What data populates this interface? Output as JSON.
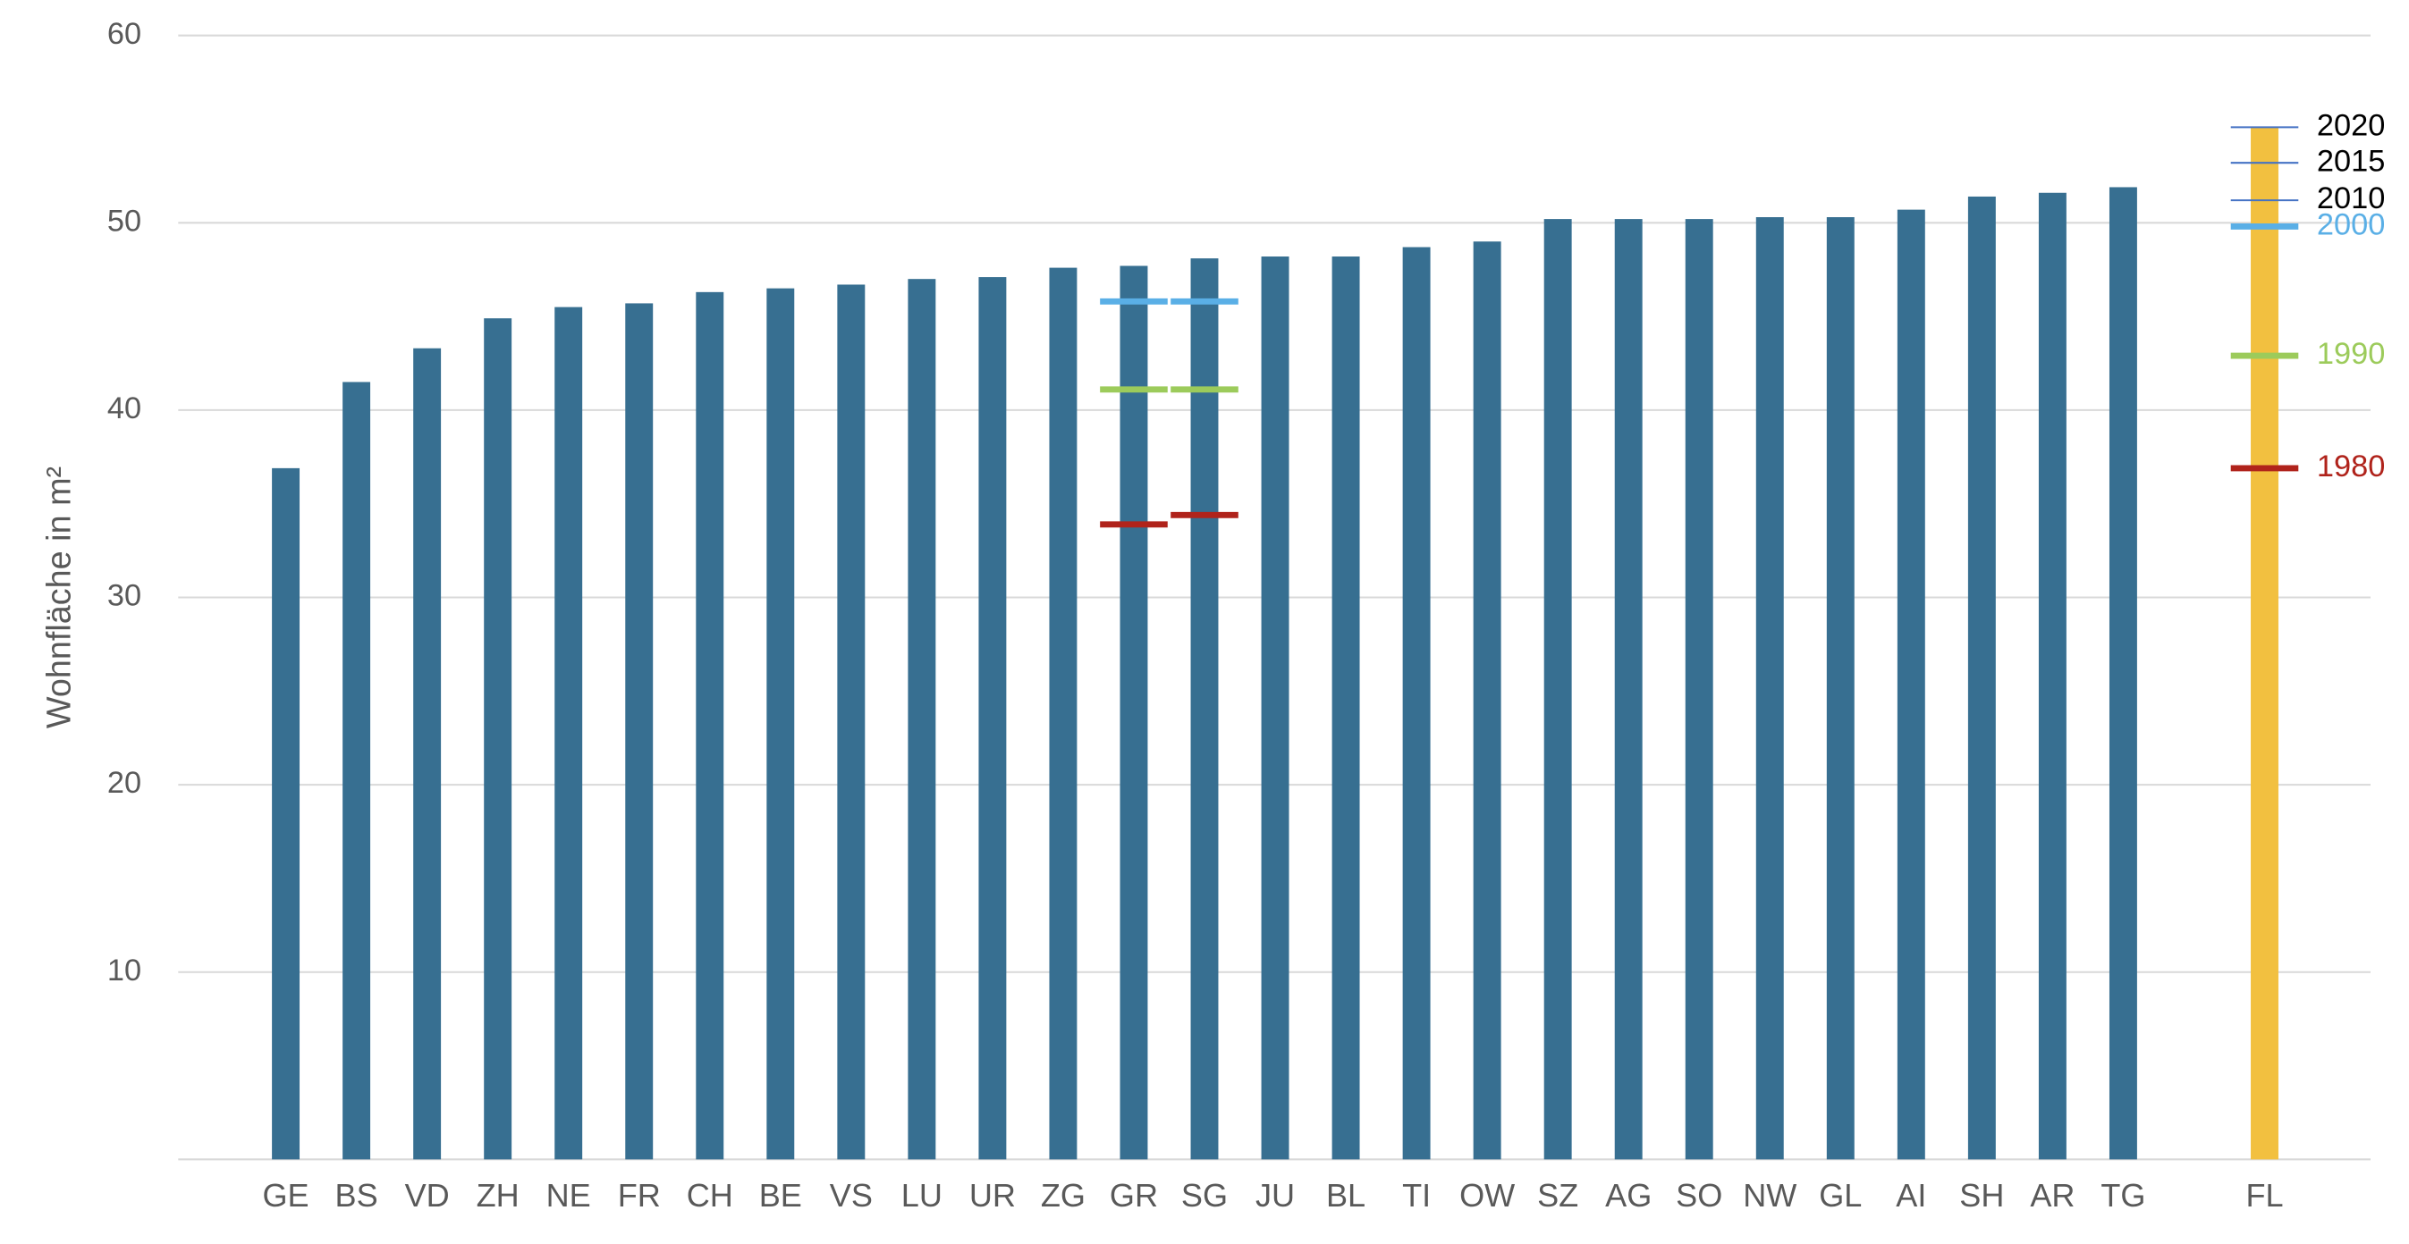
{
  "chart_data": {
    "type": "bar",
    "y_label": "Wohnfläche in m²",
    "categories": [
      "GE",
      "BS",
      "VD",
      "ZH",
      "NE",
      "FR",
      "CH",
      "BE",
      "VS",
      "LU",
      "UR",
      "ZG",
      "GR",
      "SG",
      "JU",
      "BL",
      "TI",
      "OW",
      "SZ",
      "AG",
      "SO",
      "NW",
      "GL",
      "AI",
      "SH",
      "AR",
      "TG",
      null,
      "FL"
    ],
    "values": [
      36.9,
      41.5,
      43.3,
      44.9,
      45.5,
      45.7,
      46.3,
      46.5,
      46.7,
      47.0,
      47.1,
      47.6,
      47.7,
      48.1,
      48.2,
      48.2,
      48.7,
      49.0,
      50.2,
      50.2,
      50.2,
      50.3,
      50.3,
      50.7,
      51.4,
      51.6,
      51.9,
      null,
      55.1
    ],
    "colors": [
      "#376f91",
      "#376f91",
      "#376f91",
      "#376f91",
      "#376f91",
      "#376f91",
      "#376f91",
      "#376f91",
      "#376f91",
      "#376f91",
      "#376f91",
      "#376f91",
      "#376f91",
      "#376f91",
      "#376f91",
      "#376f91",
      "#376f91",
      "#376f91",
      "#376f91",
      "#376f91",
      "#376f91",
      "#376f91",
      "#376f91",
      "#376f91",
      "#376f91",
      "#376f91",
      "#376f91",
      null,
      "#f2c040"
    ],
    "ylim": [
      0,
      60
    ],
    "yticks": [
      10,
      20,
      30,
      40,
      50,
      60
    ],
    "grid": true,
    "series": [
      {
        "name": "1980",
        "color": "#b0231b",
        "label_color": "#b0231b",
        "stroke_width": 4,
        "values": [
          null,
          null,
          null,
          null,
          null,
          null,
          null,
          null,
          null,
          null,
          null,
          null,
          33.9,
          34.4,
          null,
          null,
          null,
          null,
          null,
          null,
          null,
          null,
          null,
          null,
          null,
          null,
          null,
          null,
          36.9
        ]
      },
      {
        "name": "1990",
        "color": "#9ccb5b",
        "label_color": "#9ccb5b",
        "stroke_width": 4,
        "values": [
          null,
          null,
          null,
          null,
          null,
          null,
          null,
          null,
          null,
          null,
          null,
          null,
          41.1,
          41.1,
          null,
          null,
          null,
          null,
          null,
          null,
          null,
          null,
          null,
          null,
          null,
          null,
          null,
          null,
          42.9
        ]
      },
      {
        "name": "2000",
        "color": "#5aafe6",
        "label_color": "#5aafe6",
        "stroke_width": 4,
        "values": [
          null,
          null,
          null,
          null,
          null,
          null,
          null,
          null,
          null,
          null,
          null,
          null,
          45.8,
          45.8,
          null,
          null,
          null,
          null,
          null,
          null,
          null,
          null,
          null,
          null,
          null,
          null,
          null,
          null,
          49.8
        ]
      },
      {
        "name": "2010",
        "color": "#4472c4",
        "label_color": "#000000",
        "stroke_width": 1.2,
        "values": [
          null,
          null,
          null,
          null,
          null,
          null,
          null,
          null,
          null,
          null,
          null,
          null,
          null,
          null,
          null,
          null,
          null,
          null,
          null,
          null,
          null,
          null,
          null,
          null,
          null,
          null,
          null,
          null,
          51.2
        ]
      },
      {
        "name": "2015",
        "color": "#4472c4",
        "label_color": "#000000",
        "stroke_width": 1.2,
        "values": [
          null,
          null,
          null,
          null,
          null,
          null,
          null,
          null,
          null,
          null,
          null,
          null,
          null,
          null,
          null,
          null,
          null,
          null,
          null,
          null,
          null,
          null,
          null,
          null,
          null,
          null,
          null,
          null,
          53.2
        ]
      },
      {
        "name": "2020",
        "color": "#4472c4",
        "label_color": "#000000",
        "stroke_width": 1.2,
        "values": [
          null,
          null,
          null,
          null,
          null,
          null,
          null,
          null,
          null,
          null,
          null,
          null,
          null,
          null,
          null,
          null,
          null,
          null,
          null,
          null,
          null,
          null,
          null,
          null,
          null,
          null,
          null,
          null,
          55.1
        ]
      }
    ]
  }
}
